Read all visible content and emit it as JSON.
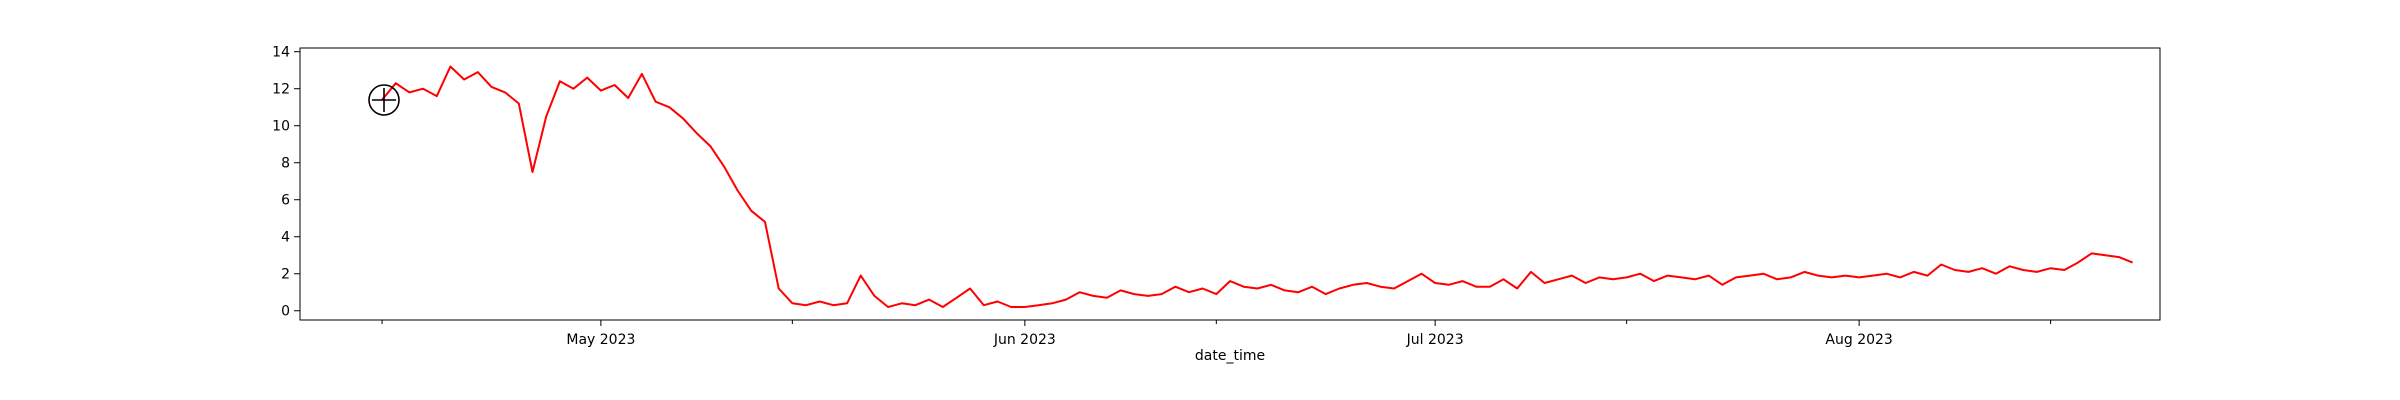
{
  "chart_data": {
    "type": "line",
    "title": "",
    "xlabel": "date_time",
    "ylabel": "",
    "ylim": [
      -0.5,
      14.2
    ],
    "xlim": [
      "2023-04-09",
      "2023-08-23"
    ],
    "grid": false,
    "legend": "none",
    "series_color": "#ff0000",
    "yticks": [
      0,
      2,
      4,
      6,
      8,
      10,
      12,
      14
    ],
    "xticks": [
      {
        "date": "2023-05-01",
        "label": "May 2023"
      },
      {
        "date": "2023-06-01",
        "label": "Jun 2023"
      },
      {
        "date": "2023-07-01",
        "label": "Jul 2023"
      },
      {
        "date": "2023-08-01",
        "label": "Aug 2023"
      }
    ],
    "xminor_ticks": [
      "2023-04-15",
      "2023-05-15",
      "2023-06-15",
      "2023-07-15",
      "2023-08-15"
    ],
    "series": [
      {
        "x": [
          "2023-04-15",
          "2023-04-16",
          "2023-04-17",
          "2023-04-18",
          "2023-04-19",
          "2023-04-20",
          "2023-04-21",
          "2023-04-22",
          "2023-04-23",
          "2023-04-24",
          "2023-04-25",
          "2023-04-26",
          "2023-04-27",
          "2023-04-28",
          "2023-04-29",
          "2023-04-30",
          "2023-05-01",
          "2023-05-02",
          "2023-05-03",
          "2023-05-04",
          "2023-05-05",
          "2023-05-06",
          "2023-05-07",
          "2023-05-08",
          "2023-05-09",
          "2023-05-10",
          "2023-05-11",
          "2023-05-12",
          "2023-05-13",
          "2023-05-14",
          "2023-05-15",
          "2023-05-16",
          "2023-05-17",
          "2023-05-18",
          "2023-05-19",
          "2023-05-20",
          "2023-05-21",
          "2023-05-22",
          "2023-05-23",
          "2023-05-24",
          "2023-05-25",
          "2023-05-26",
          "2023-05-27",
          "2023-05-28",
          "2023-05-29",
          "2023-05-30",
          "2023-05-31",
          "2023-06-01",
          "2023-06-02",
          "2023-06-03",
          "2023-06-04",
          "2023-06-05",
          "2023-06-06",
          "2023-06-07",
          "2023-06-08",
          "2023-06-09",
          "2023-06-10",
          "2023-06-11",
          "2023-06-12",
          "2023-06-13",
          "2023-06-14",
          "2023-06-15",
          "2023-06-16",
          "2023-06-17",
          "2023-06-18",
          "2023-06-19",
          "2023-06-20",
          "2023-06-21",
          "2023-06-22",
          "2023-06-23",
          "2023-06-24",
          "2023-06-25",
          "2023-06-26",
          "2023-06-27",
          "2023-06-28",
          "2023-06-29",
          "2023-06-30",
          "2023-07-01",
          "2023-07-02",
          "2023-07-03",
          "2023-07-04",
          "2023-07-05",
          "2023-07-06",
          "2023-07-07",
          "2023-07-08",
          "2023-07-09",
          "2023-07-10",
          "2023-07-11",
          "2023-07-12",
          "2023-07-13",
          "2023-07-14",
          "2023-07-15",
          "2023-07-16",
          "2023-07-17",
          "2023-07-18",
          "2023-07-19",
          "2023-07-20",
          "2023-07-21",
          "2023-07-22",
          "2023-07-23",
          "2023-07-24",
          "2023-07-25",
          "2023-07-26",
          "2023-07-27",
          "2023-07-28",
          "2023-07-29",
          "2023-07-30",
          "2023-07-31",
          "2023-08-01",
          "2023-08-02",
          "2023-08-03",
          "2023-08-04",
          "2023-08-05",
          "2023-08-06",
          "2023-08-07",
          "2023-08-08",
          "2023-08-09",
          "2023-08-10",
          "2023-08-11",
          "2023-08-12",
          "2023-08-13",
          "2023-08-14",
          "2023-08-15",
          "2023-08-16",
          "2023-08-17",
          "2023-08-18",
          "2023-08-19",
          "2023-08-20",
          "2023-08-21"
        ],
        "y": [
          11.4,
          12.3,
          11.8,
          12.0,
          11.6,
          13.2,
          12.5,
          12.9,
          12.1,
          11.8,
          11.2,
          7.5,
          10.5,
          12.4,
          12.0,
          12.6,
          11.9,
          12.2,
          11.5,
          12.8,
          11.3,
          11.0,
          10.4,
          9.6,
          8.9,
          7.8,
          6.5,
          5.4,
          4.8,
          1.2,
          0.4,
          0.3,
          0.5,
          0.3,
          0.4,
          1.9,
          0.8,
          0.2,
          0.4,
          0.3,
          0.6,
          0.2,
          0.7,
          1.2,
          0.3,
          0.5,
          0.2,
          0.2,
          0.3,
          0.4,
          0.6,
          1.0,
          0.8,
          0.7,
          1.1,
          0.9,
          0.8,
          0.9,
          1.3,
          1.0,
          1.2,
          0.9,
          1.6,
          1.3,
          1.2,
          1.4,
          1.1,
          1.0,
          1.3,
          0.9,
          1.2,
          1.4,
          1.5,
          1.3,
          1.2,
          1.6,
          2.0,
          1.5,
          1.4,
          1.6,
          1.3,
          1.3,
          1.7,
          1.2,
          2.1,
          1.5,
          1.7,
          1.9,
          1.5,
          1.8,
          1.7,
          1.8,
          2.0,
          1.6,
          1.9,
          1.8,
          1.7,
          1.9,
          1.4,
          1.8,
          1.9,
          2.0,
          1.7,
          1.8,
          2.1,
          1.9,
          1.8,
          1.9,
          1.8,
          1.9,
          2.0,
          1.8,
          2.1,
          1.9,
          2.5,
          2.2,
          2.1,
          2.3,
          2.0,
          2.4,
          2.2,
          2.1,
          2.3,
          2.2,
          2.6,
          3.1,
          3.0,
          2.9,
          2.6
        ]
      }
    ]
  }
}
